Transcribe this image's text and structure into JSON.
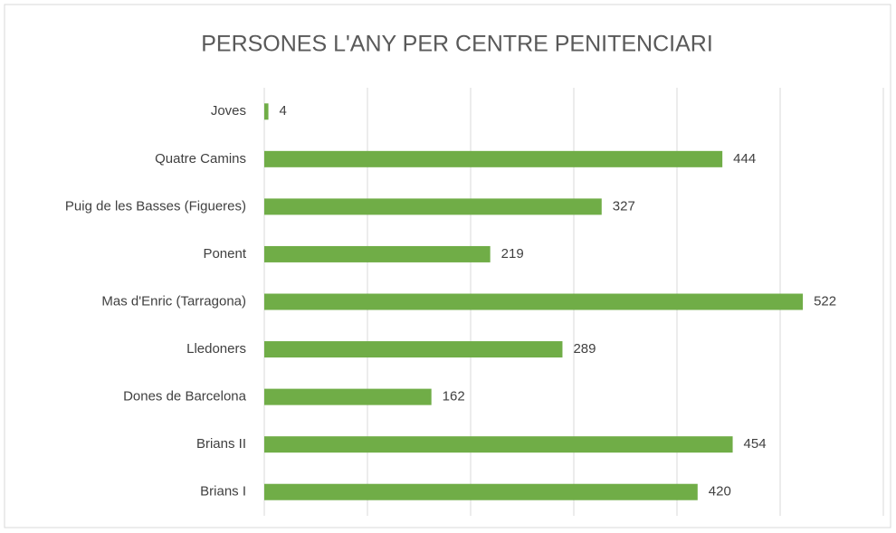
{
  "chart_data": {
    "type": "bar",
    "orientation": "horizontal",
    "title": "PERSONES L'ANY PER CENTRE PENITENCIARI",
    "categories": [
      "Joves",
      "Quatre Camins",
      "Puig de les Basses (Figueres)",
      "Ponent",
      "Mas d'Enric (Tarragona)",
      "Lledoners",
      "Dones de Barcelona",
      "Brians II",
      "Brians I"
    ],
    "values": [
      4,
      444,
      327,
      219,
      522,
      289,
      162,
      454,
      420
    ],
    "color": "#70ad47",
    "xlim": [
      0,
      600
    ],
    "xticks": [
      0,
      100,
      200,
      300,
      400,
      500,
      600
    ],
    "grid": true
  }
}
